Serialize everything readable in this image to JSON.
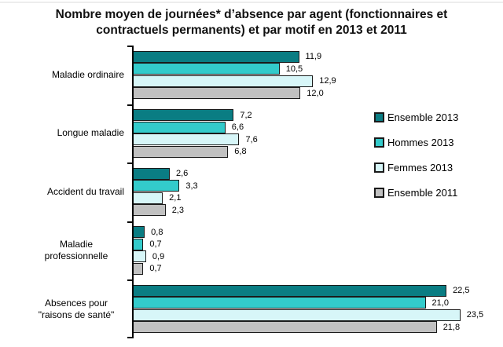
{
  "title": {
    "line1": "Nombre moyen de journées* d’absence par agent (fonctionnaires et",
    "line2": "contractuels permanents) et par motif en 2013 et 2011"
  },
  "chart_data": {
    "type": "bar",
    "orientation": "horizontal",
    "title": "Nombre moyen de journées* d’absence par agent (fonctionnaires et contractuels permanents) et par motif en 2013 et 2011",
    "xlabel": "",
    "ylabel": "",
    "xlim": [
      0,
      26
    ],
    "grid": false,
    "legend_position": "right",
    "categories": [
      "Maladie ordinaire",
      "Longue maladie",
      "Accident du travail",
      "Maladie professionnelle",
      "Absences pour \"raisons de santé\""
    ],
    "series": [
      {
        "name": "Ensemble 2013",
        "color": "#0A7D83",
        "values": [
          11.9,
          7.2,
          2.6,
          0.8,
          22.5
        ],
        "labels": [
          "11,9",
          "7,2",
          "2,6",
          "0,8",
          "22,5"
        ]
      },
      {
        "name": "Hommes 2013",
        "color": "#33CBCB",
        "values": [
          10.5,
          6.6,
          3.3,
          0.7,
          21.0
        ],
        "labels": [
          "10,5",
          "6,6",
          "3,3",
          "0,7",
          "21,0"
        ]
      },
      {
        "name": "Femmes 2013",
        "color": "#D7F6F8",
        "values": [
          12.9,
          7.6,
          2.1,
          0.9,
          23.5
        ],
        "labels": [
          "12,9",
          "7,6",
          "2,1",
          "0,9",
          "23,5"
        ]
      },
      {
        "name": "Ensemble 2011",
        "color": "#C1C1C1",
        "values": [
          12.0,
          6.8,
          2.3,
          0.7,
          21.8
        ],
        "labels": [
          "12,0",
          "6,8",
          "2,3",
          "0,7",
          "21,8"
        ]
      }
    ]
  }
}
